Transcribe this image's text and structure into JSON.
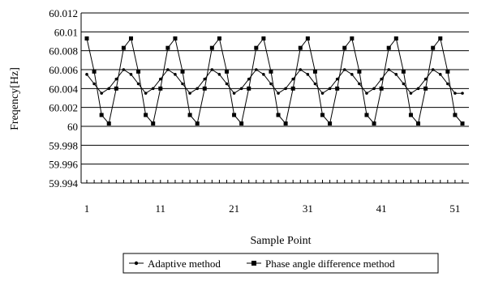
{
  "chart_data": {
    "type": "line",
    "title": "",
    "xlabel": "Sample Point",
    "ylabel": "Freqency[Hz]",
    "xlim": [
      1,
      52
    ],
    "ylim": [
      59.994,
      60.012
    ],
    "y_tick_values": [
      60.012,
      60.01,
      60.008,
      60.006,
      60.004,
      60.002,
      60,
      59.998,
      59.996,
      59.994
    ],
    "y_tick_labels": [
      "60.012",
      "60.01",
      "60.008",
      "60.006",
      "60.004",
      "60.002",
      "60",
      "59.998",
      "59.996",
      "59.994"
    ],
    "x_tick_values": [
      1,
      11,
      21,
      31,
      41,
      51
    ],
    "x_tick_labels": [
      "1",
      "11",
      "21",
      "31",
      "41",
      "51"
    ],
    "grid": "horizontal",
    "legend_position": "bottom",
    "series": [
      {
        "name": "Adaptive method",
        "marker": "dot",
        "color": "#000000",
        "x": [
          1,
          2,
          3,
          4,
          5,
          6,
          7,
          8,
          9,
          10,
          11,
          12,
          13,
          14,
          15,
          16,
          17,
          18,
          19,
          20,
          21,
          22,
          23,
          24,
          25,
          26,
          27,
          28,
          29,
          30,
          31,
          32,
          33,
          34,
          35,
          36,
          37,
          38,
          39,
          40,
          41,
          42,
          43,
          44,
          45,
          46,
          47,
          48,
          49,
          50,
          51,
          52
        ],
        "values": [
          60.0055,
          60.0045,
          60.0035,
          60.004,
          60.005,
          60.006,
          60.0055,
          60.0045,
          60.0035,
          60.004,
          60.005,
          60.006,
          60.0055,
          60.0045,
          60.0035,
          60.004,
          60.005,
          60.006,
          60.0055,
          60.0045,
          60.0035,
          60.004,
          60.005,
          60.006,
          60.0055,
          60.0045,
          60.0035,
          60.004,
          60.005,
          60.006,
          60.0055,
          60.0045,
          60.0035,
          60.004,
          60.005,
          60.006,
          60.0055,
          60.0045,
          60.0035,
          60.004,
          60.005,
          60.006,
          60.0055,
          60.0045,
          60.0035,
          60.004,
          60.005,
          60.006,
          60.0055,
          60.0045,
          60.0035,
          60.0035
        ]
      },
      {
        "name": "Phase angle difference method",
        "marker": "square",
        "color": "#000000",
        "x": [
          1,
          2,
          3,
          4,
          5,
          6,
          7,
          8,
          9,
          10,
          11,
          12,
          13,
          14,
          15,
          16,
          17,
          18,
          19,
          20,
          21,
          22,
          23,
          24,
          25,
          26,
          27,
          28,
          29,
          30,
          31,
          32,
          33,
          34,
          35,
          36,
          37,
          38,
          39,
          40,
          41,
          42,
          43,
          44,
          45,
          46,
          47,
          48,
          49,
          50,
          51,
          52
        ],
        "values": [
          60.0093,
          60.0058,
          60.0012,
          60.0003,
          60.004,
          60.0083,
          60.0093,
          60.0058,
          60.0012,
          60.0003,
          60.004,
          60.0083,
          60.0093,
          60.0058,
          60.0012,
          60.0003,
          60.004,
          60.0083,
          60.0093,
          60.0058,
          60.0012,
          60.0003,
          60.004,
          60.0083,
          60.0093,
          60.0058,
          60.0012,
          60.0003,
          60.004,
          60.0083,
          60.0093,
          60.0058,
          60.0012,
          60.0003,
          60.004,
          60.0083,
          60.0093,
          60.0058,
          60.0012,
          60.0003,
          60.004,
          60.0083,
          60.0093,
          60.0058,
          60.0012,
          60.0003,
          60.004,
          60.0083,
          60.0093,
          60.0058,
          60.0012,
          60.0003
        ]
      }
    ]
  }
}
